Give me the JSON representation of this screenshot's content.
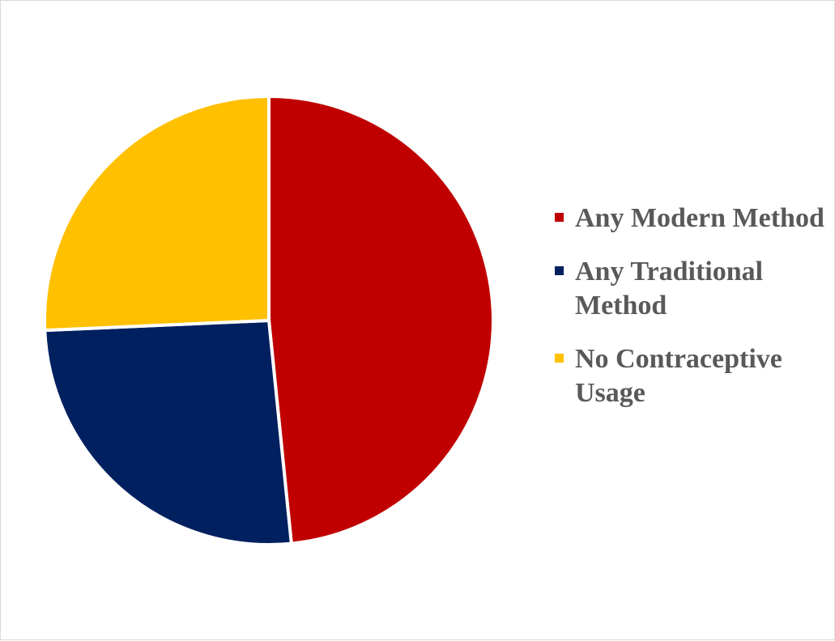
{
  "chart_data": {
    "type": "pie",
    "title": "",
    "categories": [
      "Any Modern Method",
      "Any Traditional Method",
      "No Contraceptive Usage"
    ],
    "values": [
      48.4,
      25.9,
      25.7
    ],
    "colors": [
      "#C00000",
      "#002060",
      "#FFC000"
    ],
    "legend_position": "right",
    "start_angle": "12 o'clock",
    "direction": "clockwise"
  }
}
